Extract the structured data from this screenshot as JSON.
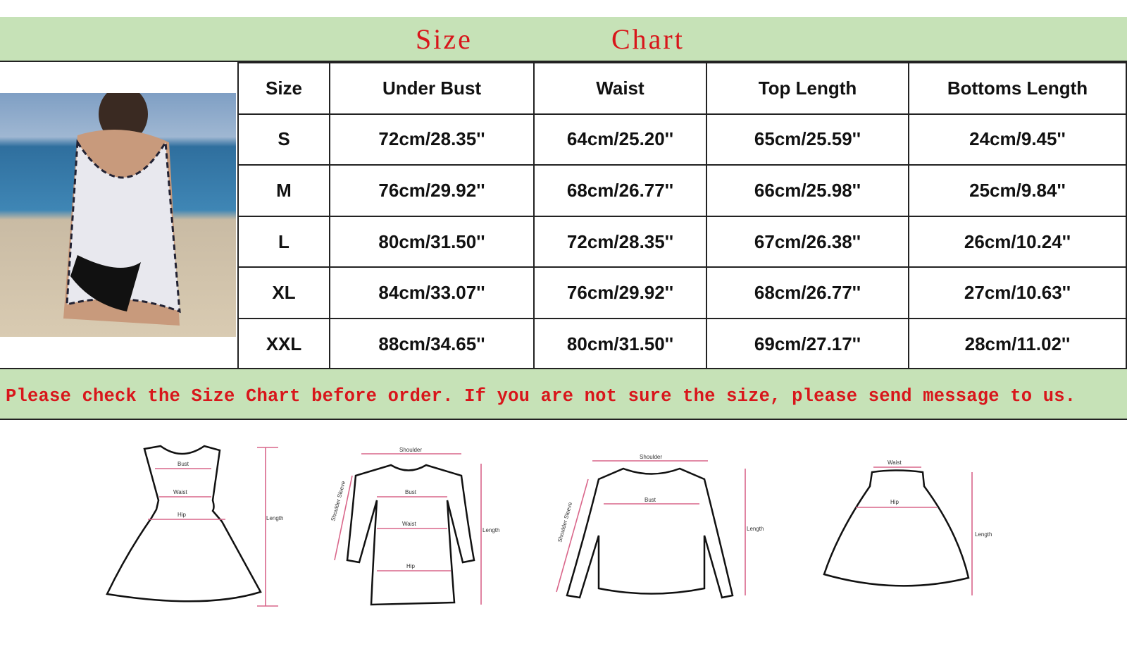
{
  "title": {
    "word1": "Size",
    "word2": "Chart"
  },
  "table": {
    "headers": [
      "Size",
      "Under Bust",
      "Waist",
      "Top Length",
      "Bottoms Length"
    ],
    "rows": [
      [
        "S",
        "72cm/28.35''",
        "64cm/25.20''",
        "65cm/25.59''",
        "24cm/9.45''"
      ],
      [
        "M",
        "76cm/29.92''",
        "68cm/26.77''",
        "66cm/25.98''",
        "25cm/9.84''"
      ],
      [
        "L",
        "80cm/31.50''",
        "72cm/28.35''",
        "67cm/26.38''",
        "26cm/10.24''"
      ],
      [
        "XL",
        "84cm/33.07''",
        "76cm/29.92''",
        "68cm/26.77''",
        "27cm/10.63''"
      ],
      [
        "XXL",
        "88cm/34.65''",
        "80cm/31.50''",
        "69cm/27.17''",
        "28cm/11.02''"
      ]
    ]
  },
  "notice": "Please check the Size Chart before order. If you are not sure the size, please send message to us.",
  "diagrams": {
    "dress": {
      "bust": "Bust",
      "waist": "Waist",
      "hip": "Hip",
      "length": "Length"
    },
    "longsleeve": {
      "shoulder": "Shoulder",
      "sleeve": "Shoulder Sleeve",
      "bust": "Bust",
      "waist": "Waist",
      "hip": "Hip",
      "length": "Length"
    },
    "sweater": {
      "shoulder": "Shoulder",
      "sleeve": "Shoulder Sleeve",
      "bust": "Bust",
      "length": "Length"
    },
    "skirt": {
      "waist": "Waist",
      "hip": "Hip",
      "length": "Length"
    }
  },
  "colors": {
    "band": "#c6e2b7",
    "title": "#d8161b"
  }
}
